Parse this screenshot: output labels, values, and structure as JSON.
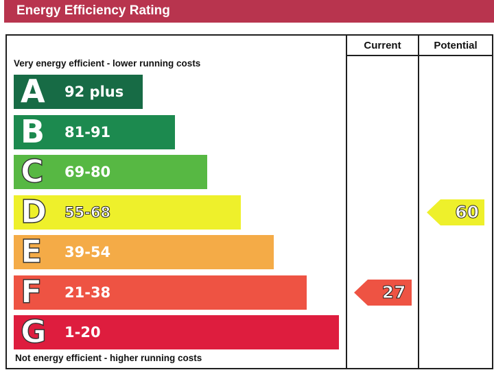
{
  "title": "Energy Efficiency Rating",
  "columns": {
    "current": "Current",
    "potential": "Potential"
  },
  "top_caption": "Very energy efficient - lower running costs",
  "bottom_caption": "Not energy efficient - higher running costs",
  "colors": {
    "title_bar": "#b8344e",
    "A": "#176b45",
    "B": "#1c8a4f",
    "C": "#57b843",
    "D": "#eef02b",
    "E": "#f4ab47",
    "F": "#ee5343",
    "G": "#de1d3e"
  },
  "chart_data": {
    "type": "bar",
    "title": "Energy Efficiency Rating",
    "categories": [
      "A",
      "B",
      "C",
      "D",
      "E",
      "F",
      "G"
    ],
    "bands": [
      {
        "letter": "A",
        "range": "92 plus"
      },
      {
        "letter": "B",
        "range": "81-91"
      },
      {
        "letter": "C",
        "range": "69-80"
      },
      {
        "letter": "D",
        "range": "55-68"
      },
      {
        "letter": "E",
        "range": "39-54"
      },
      {
        "letter": "F",
        "range": "21-38"
      },
      {
        "letter": "G",
        "range": "1-20"
      }
    ],
    "current": {
      "value": "27",
      "band": "F"
    },
    "potential": {
      "value": "60",
      "band": "D"
    }
  }
}
